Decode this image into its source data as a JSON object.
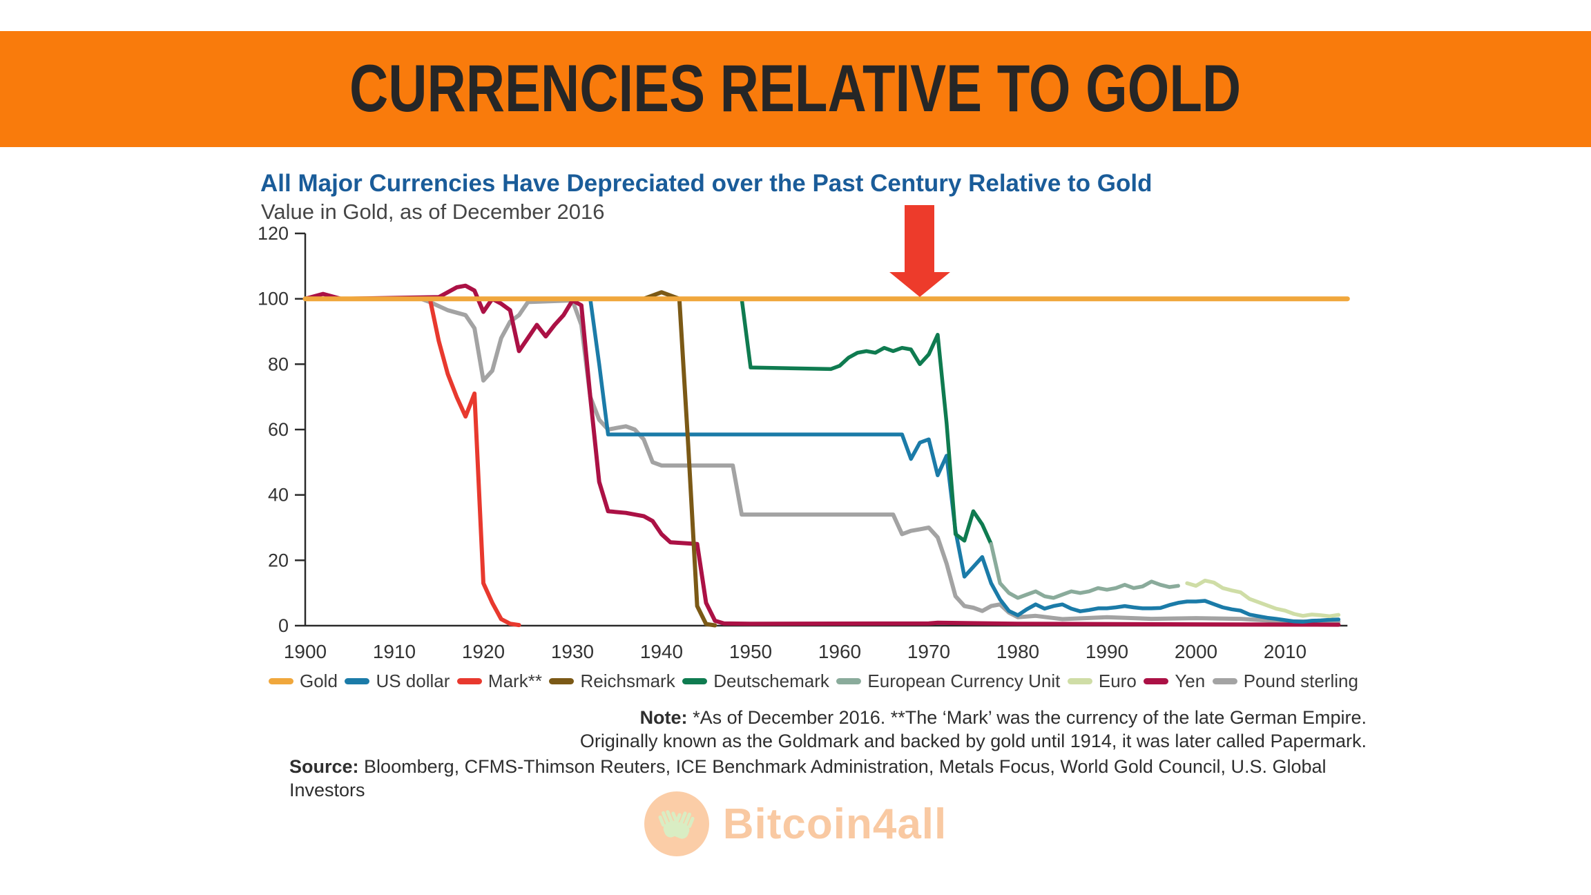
{
  "banner": {
    "title": "CURRENCIES RELATIVE TO GOLD"
  },
  "chart": {
    "heading": "All Major Currencies Have Depreciated over the Past Century Relative to Gold",
    "subheading": "Value in Gold, as of December 2016"
  },
  "chart_data": {
    "type": "line",
    "title": "All Major Currencies Have Depreciated over the Past Century Relative to Gold",
    "subtitle": "Value in Gold, as of December 2016",
    "xlabel": "",
    "ylabel": "",
    "xlim": [
      1900,
      2017
    ],
    "ylim": [
      0,
      120
    ],
    "yticks": [
      0,
      20,
      40,
      60,
      80,
      100,
      120
    ],
    "xticks": [
      1900,
      1910,
      1920,
      1930,
      1940,
      1950,
      1960,
      1970,
      1980,
      1990,
      2000,
      2010
    ],
    "grid": false,
    "legend_position": "bottom",
    "annotation": {
      "shape": "down-arrow",
      "x_year": 1970,
      "points_to": "Gold line at 100",
      "color": "#ED3B2B"
    },
    "series": [
      {
        "name": "Gold",
        "color": "#F0A73C",
        "width": 7,
        "points": [
          [
            1900,
            100
          ],
          [
            2017,
            100
          ]
        ]
      },
      {
        "name": "US dollar",
        "color": "#1B7BA8",
        "width": 5.5,
        "points": [
          [
            1900,
            100
          ],
          [
            1932,
            100
          ],
          [
            1933,
            80
          ],
          [
            1934,
            58.5
          ],
          [
            1967,
            58.5
          ],
          [
            1968,
            51
          ],
          [
            1969,
            56
          ],
          [
            1970,
            57
          ],
          [
            1971,
            46
          ],
          [
            1972,
            52
          ],
          [
            1973,
            29
          ],
          [
            1974,
            15
          ],
          [
            1975,
            18
          ],
          [
            1976,
            21
          ],
          [
            1977,
            13
          ],
          [
            1978,
            8
          ],
          [
            1979,
            4.5
          ],
          [
            1980,
            3.2
          ],
          [
            1981,
            5
          ],
          [
            1982,
            6.5
          ],
          [
            1983,
            5.2
          ],
          [
            1984,
            6
          ],
          [
            1985,
            6.5
          ],
          [
            1986,
            5.2
          ],
          [
            1987,
            4.4
          ],
          [
            1988,
            4.8
          ],
          [
            1989,
            5.3
          ],
          [
            1990,
            5.3
          ],
          [
            1991,
            5.6
          ],
          [
            1992,
            6
          ],
          [
            1993,
            5.6
          ],
          [
            1994,
            5.3
          ],
          [
            1995,
            5.3
          ],
          [
            1996,
            5.4
          ],
          [
            1997,
            6.3
          ],
          [
            1998,
            7
          ],
          [
            1999,
            7.4
          ],
          [
            2000,
            7.4
          ],
          [
            2001,
            7.6
          ],
          [
            2002,
            6.6
          ],
          [
            2003,
            5.6
          ],
          [
            2004,
            5
          ],
          [
            2005,
            4.6
          ],
          [
            2006,
            3.4
          ],
          [
            2007,
            2.9
          ],
          [
            2008,
            2.4
          ],
          [
            2009,
            2.1
          ],
          [
            2010,
            1.7
          ],
          [
            2011,
            1.3
          ],
          [
            2012,
            1.2
          ],
          [
            2013,
            1.5
          ],
          [
            2014,
            1.6
          ],
          [
            2015,
            1.8
          ],
          [
            2016,
            1.9
          ]
        ]
      },
      {
        "name": "Mark**",
        "color": "#E8392E",
        "width": 6,
        "points": [
          [
            1900,
            100
          ],
          [
            1914,
            100
          ],
          [
            1915,
            87
          ],
          [
            1916,
            77
          ],
          [
            1917,
            70
          ],
          [
            1918,
            64
          ],
          [
            1919,
            71
          ],
          [
            1920,
            13
          ],
          [
            1921,
            7
          ],
          [
            1922,
            2
          ],
          [
            1923,
            0.6
          ],
          [
            1924,
            0.2
          ]
        ]
      },
      {
        "name": "Reichsmark",
        "color": "#7B5916",
        "width": 6,
        "points": [
          [
            1924,
            100
          ],
          [
            1938,
            100
          ],
          [
            1940,
            102
          ],
          [
            1941,
            101
          ],
          [
            1942,
            100
          ],
          [
            1943,
            55
          ],
          [
            1944,
            6
          ],
          [
            1945,
            0.5
          ],
          [
            1946,
            0.1
          ]
        ]
      },
      {
        "name": "Deutschemark",
        "color": "#0F7B50",
        "width": 5.5,
        "points": [
          [
            1948,
            100
          ],
          [
            1949,
            100
          ],
          [
            1950,
            79
          ],
          [
            1959,
            78.5
          ],
          [
            1960,
            79.5
          ],
          [
            1961,
            82
          ],
          [
            1962,
            83.5
          ],
          [
            1963,
            84
          ],
          [
            1964,
            83.5
          ],
          [
            1965,
            85
          ],
          [
            1966,
            84
          ],
          [
            1967,
            85
          ],
          [
            1968,
            84.5
          ],
          [
            1969,
            80
          ],
          [
            1970,
            83
          ],
          [
            1971,
            89
          ],
          [
            1972,
            62
          ],
          [
            1973,
            28
          ],
          [
            1974,
            26
          ],
          [
            1975,
            35
          ],
          [
            1976,
            31
          ],
          [
            1977,
            25
          ]
        ]
      },
      {
        "name": "European Currency Unit",
        "color": "#8AAB9B",
        "width": 5.5,
        "points": [
          [
            1977,
            25
          ],
          [
            1978,
            13
          ],
          [
            1979,
            10
          ],
          [
            1980,
            8.5
          ],
          [
            1981,
            9.5
          ],
          [
            1982,
            10.5
          ],
          [
            1983,
            9
          ],
          [
            1984,
            8.5
          ],
          [
            1985,
            9.5
          ],
          [
            1986,
            10.5
          ],
          [
            1987,
            10
          ],
          [
            1988,
            10.5
          ],
          [
            1989,
            11.5
          ],
          [
            1990,
            11
          ],
          [
            1991,
            11.5
          ],
          [
            1992,
            12.5
          ],
          [
            1993,
            11.5
          ],
          [
            1994,
            12
          ],
          [
            1995,
            13.5
          ],
          [
            1996,
            12.5
          ],
          [
            1997,
            11.8
          ],
          [
            1998,
            12.2
          ]
        ]
      },
      {
        "name": "Euro",
        "color": "#CFDDA6",
        "width": 5.5,
        "points": [
          [
            1999,
            13
          ],
          [
            2000,
            12.2
          ],
          [
            2001,
            13.8
          ],
          [
            2002,
            13.2
          ],
          [
            2003,
            11.5
          ],
          [
            2004,
            10.8
          ],
          [
            2005,
            10.2
          ],
          [
            2006,
            8.2
          ],
          [
            2007,
            7.2
          ],
          [
            2008,
            6.2
          ],
          [
            2009,
            5.2
          ],
          [
            2010,
            4.6
          ],
          [
            2011,
            3.6
          ],
          [
            2012,
            3
          ],
          [
            2013,
            3.4
          ],
          [
            2014,
            3.2
          ],
          [
            2015,
            2.9
          ],
          [
            2016,
            3.3
          ]
        ]
      },
      {
        "name": "Yen",
        "color": "#AB1145",
        "width": 6,
        "points": [
          [
            1900,
            100
          ],
          [
            1902,
            101.5
          ],
          [
            1904,
            100
          ],
          [
            1915,
            100.5
          ],
          [
            1917,
            103.5
          ],
          [
            1918,
            104
          ],
          [
            1919,
            102.5
          ],
          [
            1920,
            96
          ],
          [
            1921,
            100
          ],
          [
            1922,
            98.5
          ],
          [
            1923,
            96.5
          ],
          [
            1924,
            84
          ],
          [
            1925,
            88
          ],
          [
            1926,
            92
          ],
          [
            1927,
            88.5
          ],
          [
            1928,
            92
          ],
          [
            1929,
            95
          ],
          [
            1930,
            99.5
          ],
          [
            1931,
            98
          ],
          [
            1932,
            70
          ],
          [
            1933,
            44
          ],
          [
            1934,
            35
          ],
          [
            1936,
            34.5
          ],
          [
            1938,
            33.5
          ],
          [
            1939,
            32
          ],
          [
            1940,
            28
          ],
          [
            1941,
            25.5
          ],
          [
            1944,
            25
          ],
          [
            1945,
            7
          ],
          [
            1946,
            1.5
          ],
          [
            1947,
            0.7
          ],
          [
            1950,
            0.6
          ],
          [
            1970,
            0.7
          ],
          [
            1971,
            0.9
          ],
          [
            1980,
            0.6
          ],
          [
            2000,
            0.4
          ],
          [
            2016,
            0.3
          ]
        ]
      },
      {
        "name": "Pound sterling",
        "color": "#A3A3A3",
        "width": 6,
        "points": [
          [
            1900,
            100
          ],
          [
            1913,
            100
          ],
          [
            1914,
            99
          ],
          [
            1916,
            96.5
          ],
          [
            1918,
            95
          ],
          [
            1919,
            91
          ],
          [
            1920,
            75
          ],
          [
            1921,
            78
          ],
          [
            1922,
            88
          ],
          [
            1923,
            93
          ],
          [
            1924,
            95
          ],
          [
            1925,
            99
          ],
          [
            1930,
            99.5
          ],
          [
            1931,
            92
          ],
          [
            1932,
            70
          ],
          [
            1933,
            63
          ],
          [
            1934,
            60
          ],
          [
            1935,
            60.5
          ],
          [
            1936,
            61
          ],
          [
            1937,
            60
          ],
          [
            1938,
            57
          ],
          [
            1939,
            50
          ],
          [
            1940,
            49
          ],
          [
            1948,
            49
          ],
          [
            1949,
            34
          ],
          [
            1966,
            34
          ],
          [
            1967,
            28
          ],
          [
            1968,
            29
          ],
          [
            1969,
            29.5
          ],
          [
            1970,
            30
          ],
          [
            1971,
            27
          ],
          [
            1972,
            19
          ],
          [
            1973,
            9
          ],
          [
            1974,
            6
          ],
          [
            1975,
            5.5
          ],
          [
            1976,
            4.5
          ],
          [
            1977,
            6
          ],
          [
            1978,
            6.5
          ],
          [
            1979,
            4
          ],
          [
            1980,
            2.6
          ],
          [
            1982,
            3
          ],
          [
            1985,
            2
          ],
          [
            1990,
            2.6
          ],
          [
            1995,
            2.1
          ],
          [
            2000,
            2.3
          ],
          [
            2005,
            2.1
          ],
          [
            2008,
            1.6
          ],
          [
            2010,
            1.3
          ],
          [
            2016,
            1.2
          ]
        ]
      }
    ]
  },
  "notes": {
    "note_label": "Note:",
    "note_line1": "*As of December 2016. **The ‘Mark’ was the currency of the late German Empire.",
    "note_line2": "Originally known as the Goldmark and backed by gold until 1914, it was later called Papermark.",
    "source_label": "Source:",
    "source_text": "Bloomberg, CFMS-Thimson Reuters, ICE Benchmark Administration, Metals Focus, World Gold Council, U.S. Global Investors"
  },
  "footer": {
    "logo_text": "Bitcoin4all"
  }
}
